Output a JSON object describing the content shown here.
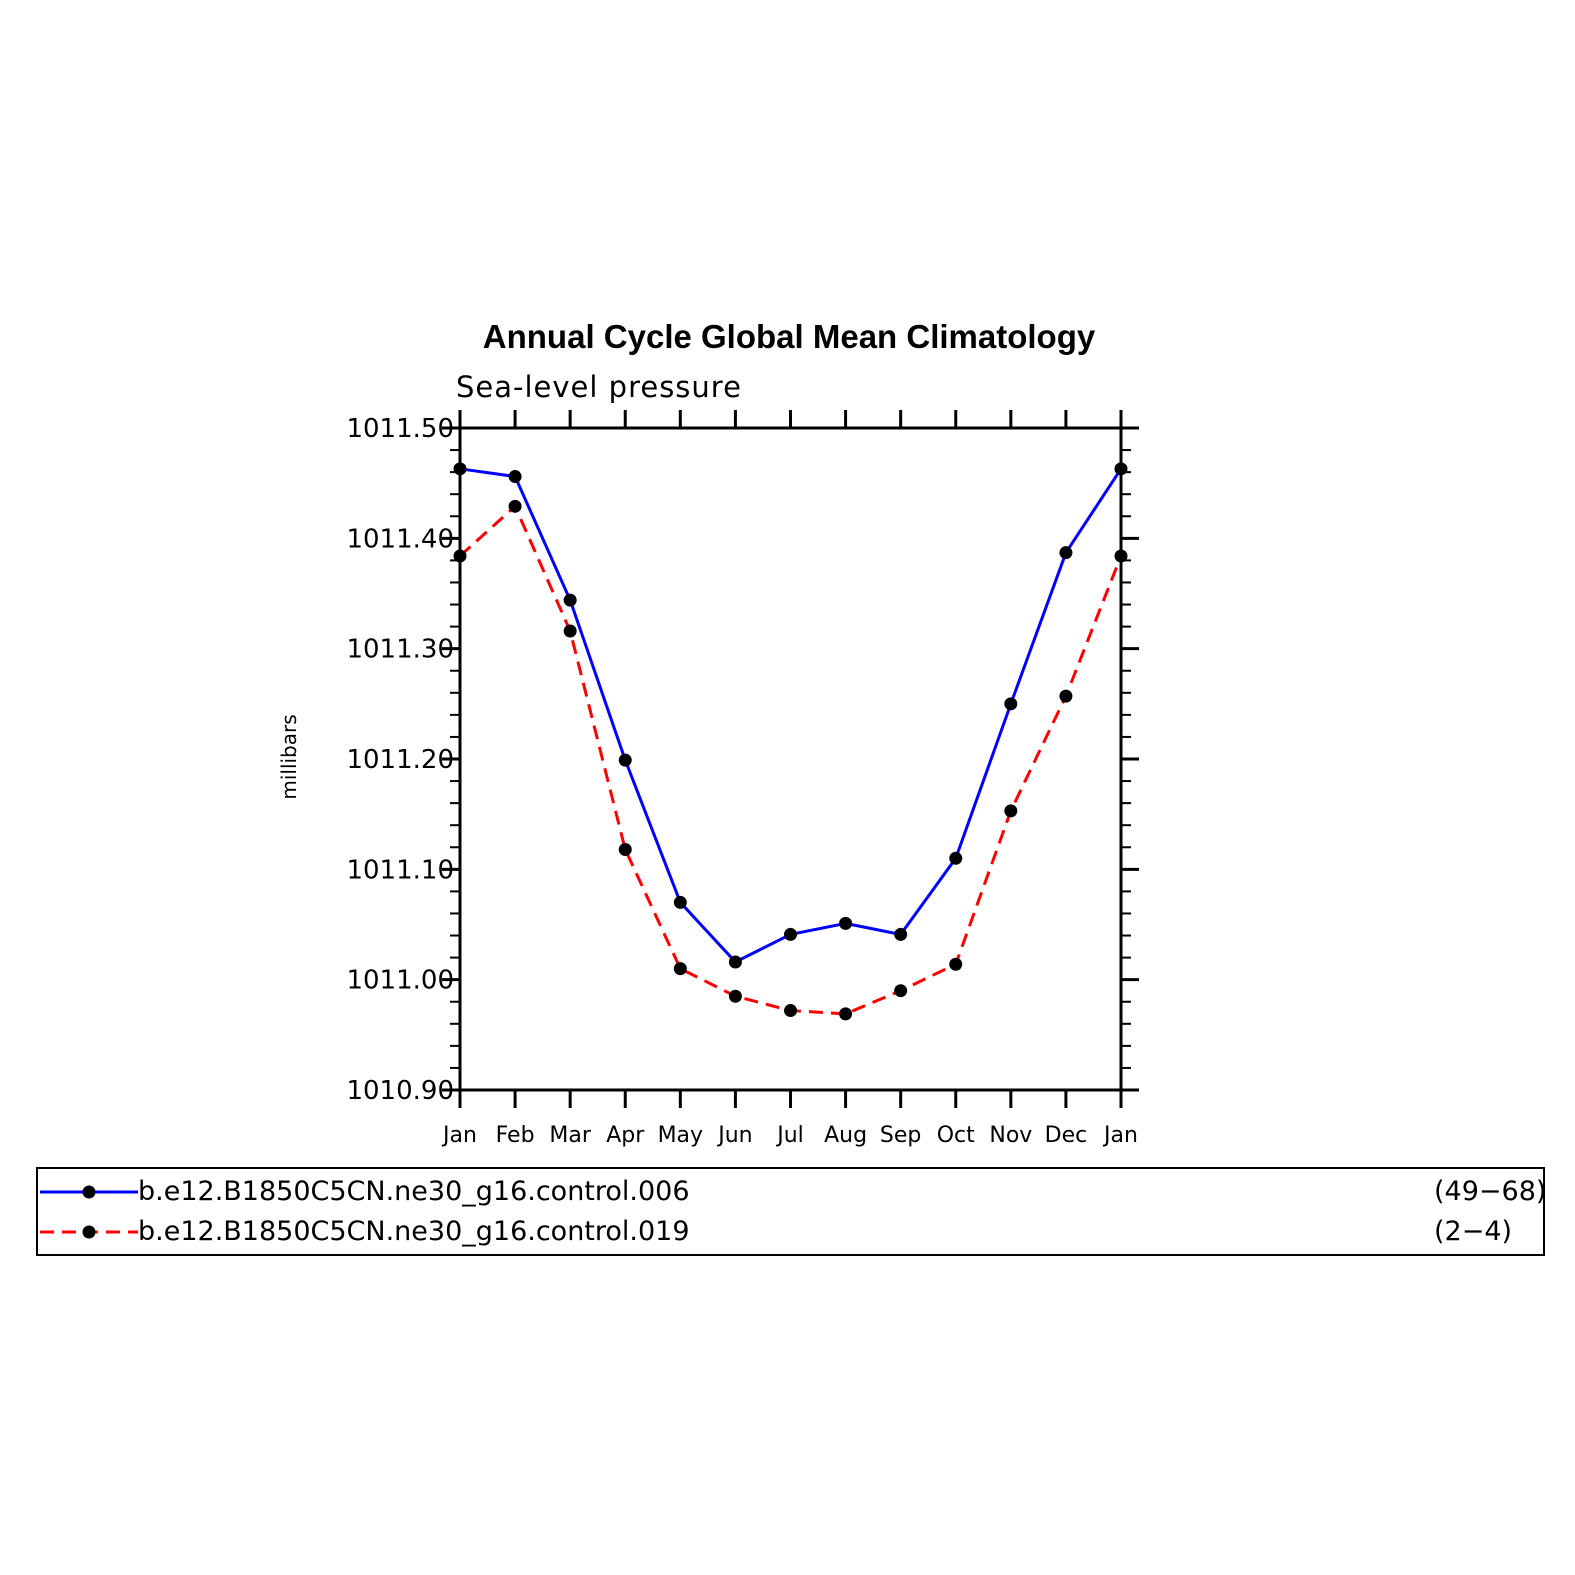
{
  "chart_data": {
    "type": "line",
    "title": "Annual Cycle Global Mean Climatology",
    "subtitle": "Sea-level pressure",
    "ylabel": "millibars",
    "xlabel": "",
    "categories": [
      "Jan",
      "Feb",
      "Mar",
      "Apr",
      "May",
      "Jun",
      "Jul",
      "Aug",
      "Sep",
      "Oct",
      "Nov",
      "Dec",
      "Jan"
    ],
    "ylim": [
      1010.9,
      1011.5
    ],
    "yticks": [
      "1010.90",
      "1011.00",
      "1011.10",
      "1011.20",
      "1011.30",
      "1011.40",
      "1011.50"
    ],
    "ytick_values": [
      1010.9,
      1011.0,
      1011.1,
      1011.2,
      1011.3,
      1011.4,
      1011.5
    ],
    "grid": false,
    "series": [
      {
        "name": "b.e12.B1850C5CN.ne30_g16.control.006",
        "years": "(49−68)",
        "color": "#0000ff",
        "dash": "solid",
        "values": [
          1011.463,
          1011.456,
          1011.344,
          1011.199,
          1011.07,
          1011.016,
          1011.041,
          1011.051,
          1011.041,
          1011.11,
          1011.25,
          1011.387,
          1011.463
        ]
      },
      {
        "name": "b.e12.B1850C5CN.ne30_g16.control.019",
        "years": "(2−4)",
        "color": "#ff0000",
        "dash": "dashed",
        "values": [
          1011.384,
          1011.429,
          1011.316,
          1011.118,
          1011.01,
          1010.985,
          1010.972,
          1010.969,
          1010.99,
          1011.014,
          1011.153,
          1011.257,
          1011.384
        ]
      }
    ],
    "marker_color": "#000000"
  }
}
